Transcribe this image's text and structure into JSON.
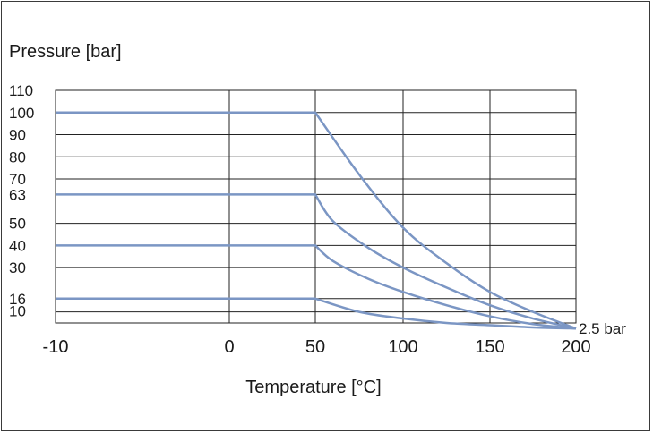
{
  "chart_data": {
    "type": "line",
    "title": "",
    "ylabel": "Pressure [bar]",
    "xlabel": "Temperature [°C]",
    "x_ticks": [
      -10,
      0,
      50,
      100,
      150,
      200
    ],
    "y_ticks": [
      10,
      16,
      30,
      40,
      50,
      63,
      70,
      80,
      90,
      100,
      110
    ],
    "ylim": [
      5,
      110
    ],
    "grid": true,
    "line_color": "#7b96c4",
    "grid_color": "#222222",
    "end_annotation": "2.5 bar",
    "series": [
      {
        "x": [
          -10,
          0,
          50,
          75,
          100,
          125,
          150,
          175,
          200
        ],
        "y": [
          100,
          100,
          100,
          72,
          48,
          32,
          19,
          10,
          2.5
        ]
      },
      {
        "x": [
          -10,
          0,
          50,
          60,
          80,
          100,
          125,
          150,
          175,
          200
        ],
        "y": [
          63,
          63,
          63,
          51,
          39,
          30,
          21,
          13,
          7,
          2.5
        ]
      },
      {
        "x": [
          -10,
          0,
          50,
          60,
          80,
          100,
          125,
          150,
          175,
          200
        ],
        "y": [
          40,
          40,
          40,
          33,
          25,
          19,
          13,
          8,
          4.5,
          2.5
        ]
      },
      {
        "x": [
          -10,
          0,
          50,
          75,
          100,
          125,
          150,
          175,
          200
        ],
        "y": [
          16,
          16,
          16,
          10,
          7,
          5,
          4,
          3,
          2.5
        ]
      }
    ]
  }
}
